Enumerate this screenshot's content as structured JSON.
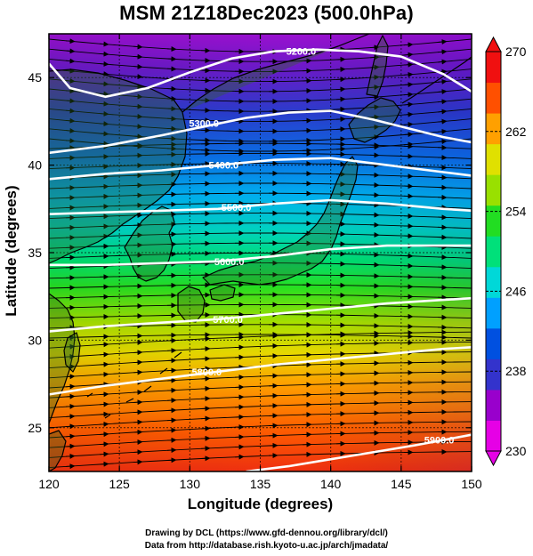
{
  "title": "MSM 21Z18Dec2023 (500.0hPa)",
  "xlabel": "Longitude (degrees)",
  "ylabel": "Latitude  (degrees)",
  "credit_line1": "Drawing by DCL (https://www.gfd-dennou.org/library/dcl/)",
  "credit_line2": "Data from http://database.rish.kyoto-u.ac.jp/arch/jmadata/",
  "colors": {
    "colorbar": [
      "#e600e6",
      "#9900cc",
      "#3333cc",
      "#0050e0",
      "#00a0ff",
      "#00d8d8",
      "#00e07a",
      "#22dd22",
      "#99e000",
      "#e0e000",
      "#ffa000",
      "#ff5000",
      "#f01010"
    ],
    "contour": "#ffffff",
    "streamline": "#000000",
    "coast": "#000000"
  },
  "map": {
    "xticks": [
      120,
      125,
      130,
      135,
      140,
      145,
      150
    ],
    "yticks": [
      25,
      30,
      35,
      40,
      45
    ],
    "lon_range": [
      120,
      150
    ],
    "lat_range": [
      22.5,
      47.5
    ]
  },
  "colorbar": {
    "labels": [
      270,
      262,
      254,
      246,
      238,
      230
    ],
    "min": 230,
    "max": 270
  },
  "contours": [
    {
      "label": "5200.0",
      "label_lon": 137.9,
      "label_lat": 46.5,
      "points": [
        [
          120,
          45.8
        ],
        [
          121.5,
          44.4
        ],
        [
          124,
          43.9
        ],
        [
          127,
          44.4
        ],
        [
          130,
          45.3
        ],
        [
          133,
          46.1
        ],
        [
          136,
          46.5
        ],
        [
          139,
          46.6
        ],
        [
          142,
          46.5
        ],
        [
          145,
          46.2
        ],
        [
          148,
          45.2
        ],
        [
          150,
          44.2
        ]
      ]
    },
    {
      "label": "5300.0",
      "label_lon": 131.0,
      "label_lat": 42.4,
      "points": [
        [
          120,
          40.7
        ],
        [
          124,
          41.1
        ],
        [
          128,
          41.7
        ],
        [
          131,
          42.2
        ],
        [
          134,
          42.7
        ],
        [
          137,
          43.0
        ],
        [
          140,
          43.1
        ],
        [
          143,
          42.6
        ],
        [
          146,
          42.0
        ],
        [
          148,
          41.6
        ],
        [
          150,
          41.3
        ]
      ]
    },
    {
      "label": "5400.0",
      "label_lon": 132.4,
      "label_lat": 40.0,
      "points": [
        [
          120,
          39.2
        ],
        [
          124,
          39.5
        ],
        [
          128,
          39.7
        ],
        [
          132,
          40.0
        ],
        [
          136,
          40.3
        ],
        [
          140,
          40.4
        ],
        [
          144,
          40.0
        ],
        [
          148,
          39.6
        ],
        [
          150,
          39.4
        ]
      ]
    },
    {
      "label": "5500.0",
      "label_lon": 133.3,
      "label_lat": 37.6,
      "points": [
        [
          120,
          37.2
        ],
        [
          124,
          37.3
        ],
        [
          128,
          37.4
        ],
        [
          132,
          37.5
        ],
        [
          136,
          37.8
        ],
        [
          140,
          38.0
        ],
        [
          144,
          37.8
        ],
        [
          148,
          37.5
        ],
        [
          150,
          37.4
        ]
      ]
    },
    {
      "label": "5600.0",
      "label_lon": 132.8,
      "label_lat": 34.5,
      "points": [
        [
          120,
          34.3
        ],
        [
          124,
          34.3
        ],
        [
          128,
          34.4
        ],
        [
          132,
          34.5
        ],
        [
          136,
          34.8
        ],
        [
          140,
          35.2
        ],
        [
          144,
          35.4
        ],
        [
          148,
          35.4
        ],
        [
          150,
          35.4
        ]
      ]
    },
    {
      "label": "5700.0",
      "label_lon": 132.7,
      "label_lat": 31.2,
      "points": [
        [
          120,
          30.5
        ],
        [
          124,
          30.8
        ],
        [
          128,
          31.0
        ],
        [
          132,
          31.2
        ],
        [
          136,
          31.5
        ],
        [
          140,
          31.8
        ],
        [
          144,
          32.1
        ],
        [
          148,
          32.3
        ],
        [
          150,
          32.4
        ]
      ]
    },
    {
      "label": "5800.0",
      "label_lon": 131.2,
      "label_lat": 28.2,
      "points": [
        [
          120,
          26.9
        ],
        [
          124,
          27.4
        ],
        [
          128,
          27.8
        ],
        [
          132,
          28.2
        ],
        [
          136,
          28.6
        ],
        [
          140,
          28.9
        ],
        [
          144,
          29.2
        ],
        [
          148,
          29.5
        ],
        [
          150,
          29.6
        ]
      ]
    },
    {
      "label": "5900.0",
      "label_lon": 147.7,
      "label_lat": 24.3,
      "points": [
        [
          134,
          22.5
        ],
        [
          137,
          22.8
        ],
        [
          140,
          23.2
        ],
        [
          143,
          23.6
        ],
        [
          146,
          24.0
        ],
        [
          148,
          24.3
        ],
        [
          150,
          24.6
        ]
      ]
    }
  ]
}
